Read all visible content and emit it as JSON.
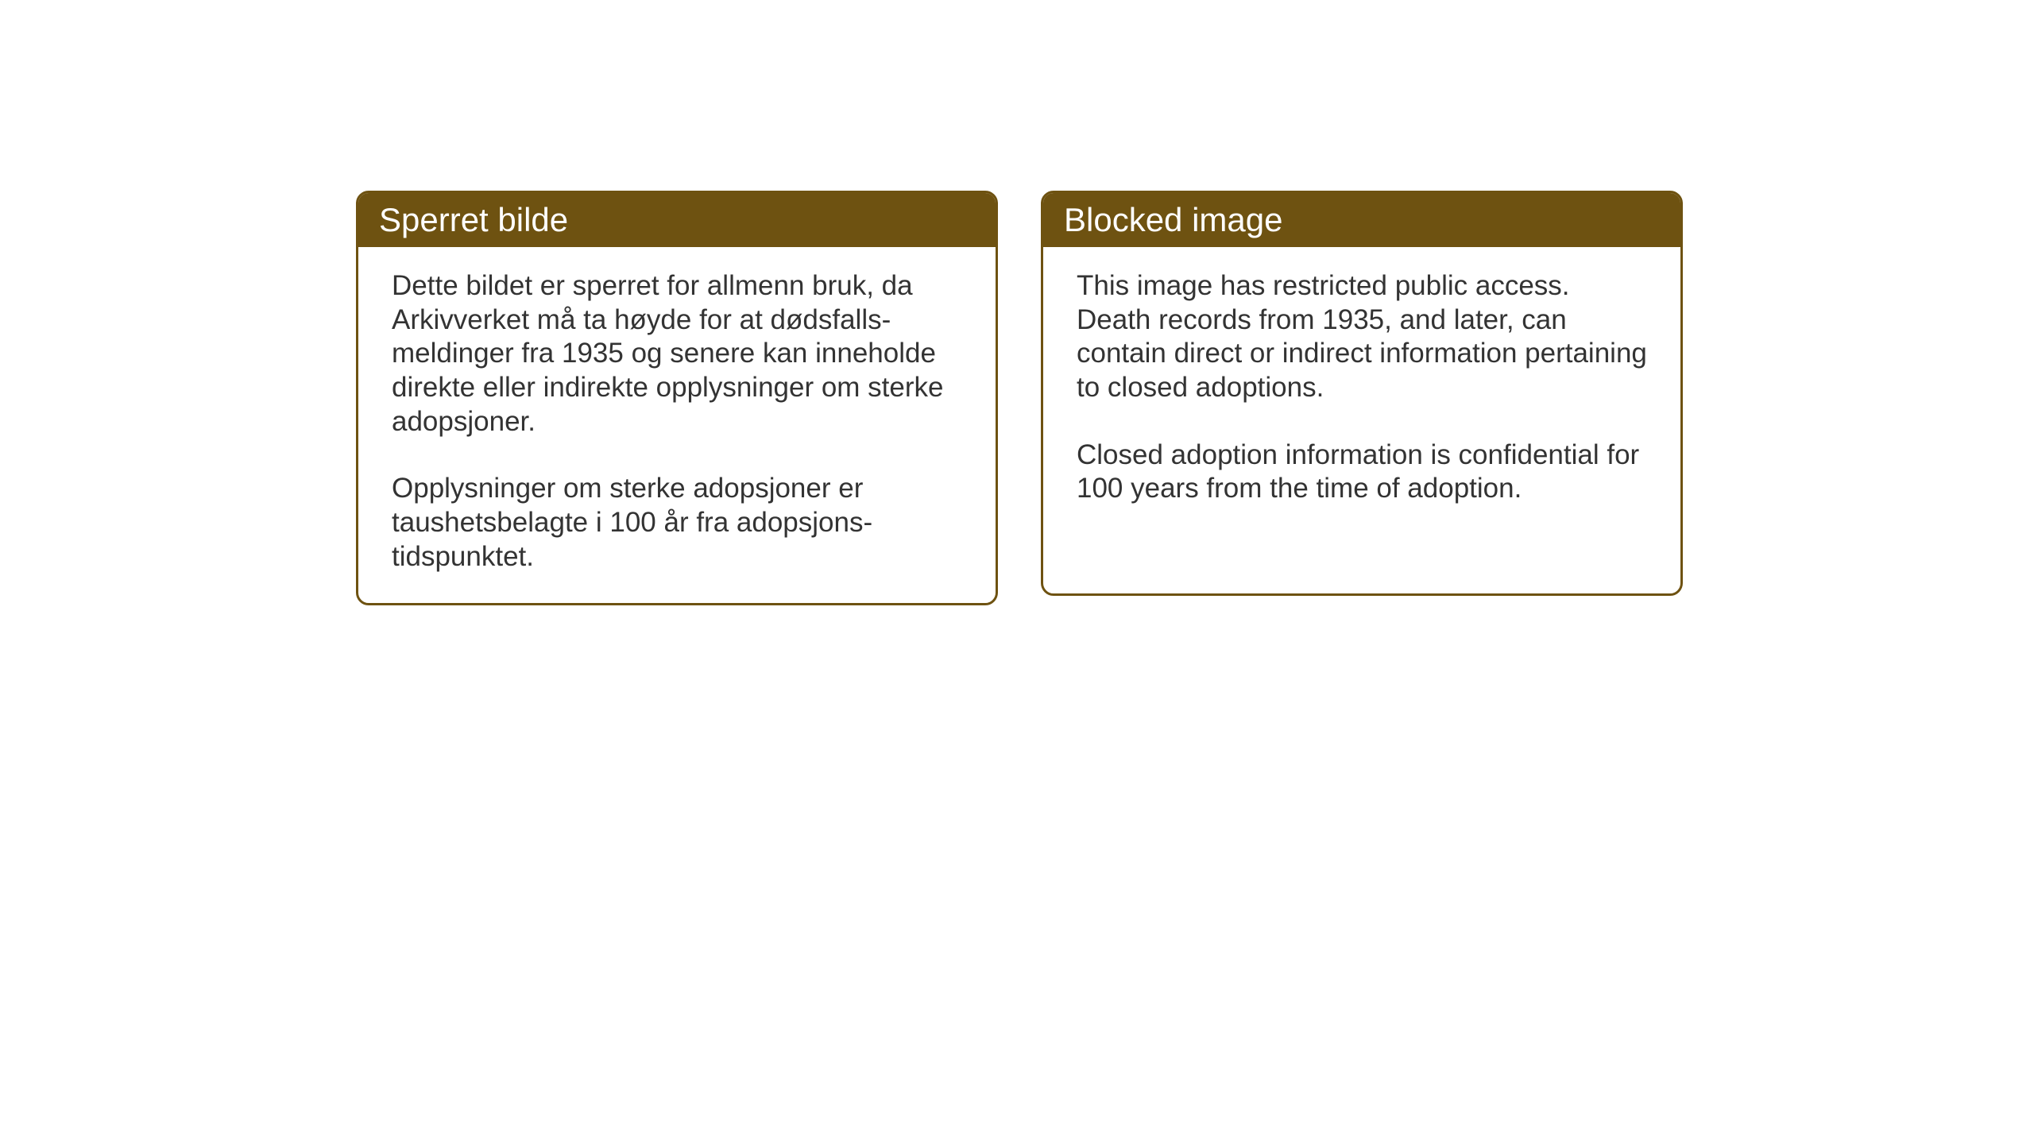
{
  "layout": {
    "background_color": "#ffffff",
    "box_border_color": "#6e5211",
    "header_background_color": "#6e5211",
    "header_text_color": "#ffffff",
    "body_text_color": "#333333",
    "header_fontsize": 42,
    "body_fontsize": 35,
    "border_radius": 16,
    "border_width": 3
  },
  "notices": {
    "norwegian": {
      "title": "Sperret bilde",
      "paragraph1": "Dette bildet er sperret for allmenn bruk, da Arkivverket må ta høyde for at dødsfalls-meldinger fra 1935 og senere kan inneholde direkte eller indirekte opplysninger om sterke adopsjoner.",
      "paragraph2": "Opplysninger om sterke adopsjoner er taushetsbelagte i 100 år fra adopsjons-tidspunktet."
    },
    "english": {
      "title": "Blocked image",
      "paragraph1": "This image has restricted public access. Death records from 1935, and later, can contain direct or indirect information pertaining to closed adoptions.",
      "paragraph2": "Closed adoption information is confidential for 100 years from the time of adoption."
    }
  }
}
